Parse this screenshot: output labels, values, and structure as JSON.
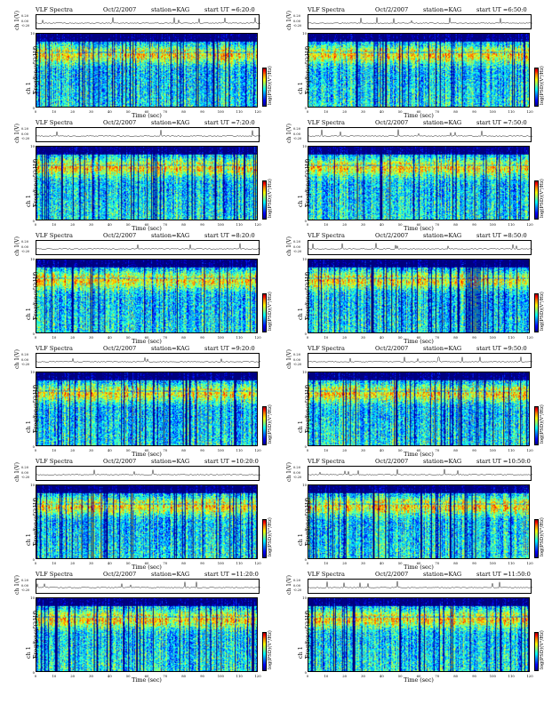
{
  "common": {
    "title_label": "VLF Spectra",
    "date": "Oct/2/2007",
    "station": "station=KAG",
    "strip_ylabel": "ch 1(V)",
    "strip_ticks": [
      "0.20",
      "0.00",
      "-0.20"
    ],
    "spec_ylabel": "Frequency  (kHz)",
    "spec_ch": "ch 1",
    "xlabel": "Time  (sec)",
    "cbar_label": "log(PSD)(V²/Hz)"
  },
  "chart_data": [
    {
      "type": "heatmap",
      "start_label": "start  UT  =6:20:0",
      "xlabel": "Time (sec)",
      "ylabel": "Frequency (kHz)",
      "xlim": [
        0,
        120
      ],
      "ylim": [
        0,
        10
      ],
      "x_ticks": [
        0,
        10,
        20,
        30,
        40,
        50,
        60,
        70,
        80,
        90,
        100,
        110,
        120
      ],
      "y_ticks": [
        0,
        2,
        4,
        6,
        8,
        10
      ]
    },
    {
      "type": "heatmap",
      "start_label": "start  UT  =6:50:0",
      "xlabel": "Time (sec)",
      "ylabel": "Frequency (kHz)",
      "xlim": [
        0,
        120
      ],
      "ylim": [
        0,
        10
      ],
      "x_ticks": [
        0,
        10,
        20,
        30,
        40,
        50,
        60,
        70,
        80,
        90,
        100,
        110,
        120
      ],
      "y_ticks": [
        0,
        2,
        4,
        6,
        8,
        10
      ]
    },
    {
      "type": "heatmap",
      "start_label": "start  UT  =7:20:0",
      "xlabel": "Time (sec)",
      "ylabel": "Frequency (kHz)",
      "xlim": [
        0,
        120
      ],
      "ylim": [
        0,
        10
      ],
      "x_ticks": [
        0,
        10,
        20,
        30,
        40,
        50,
        60,
        70,
        80,
        90,
        100,
        110,
        120
      ],
      "y_ticks": [
        0,
        2,
        4,
        6,
        8,
        10
      ]
    },
    {
      "type": "heatmap",
      "start_label": "start  UT  =7:50:0",
      "xlabel": "Time (sec)",
      "ylabel": "Frequency (kHz)",
      "xlim": [
        0,
        120
      ],
      "ylim": [
        0,
        10
      ],
      "x_ticks": [
        0,
        10,
        20,
        30,
        40,
        50,
        60,
        70,
        80,
        90,
        100,
        110,
        120
      ],
      "y_ticks": [
        0,
        2,
        4,
        6,
        8,
        10
      ]
    },
    {
      "type": "heatmap",
      "start_label": "start  UT  =8:20:0",
      "xlabel": "Time (sec)",
      "ylabel": "Frequency (kHz)",
      "xlim": [
        0,
        120
      ],
      "ylim": [
        0,
        10
      ],
      "x_ticks": [
        0,
        10,
        20,
        30,
        40,
        50,
        60,
        70,
        80,
        90,
        100,
        110,
        120
      ],
      "y_ticks": [
        0,
        2,
        4,
        6,
        8,
        10
      ]
    },
    {
      "type": "heatmap",
      "start_label": "start  UT  =8:50:0",
      "xlabel": "Time (sec)",
      "ylabel": "Frequency (kHz)",
      "xlim": [
        0,
        120
      ],
      "ylim": [
        0,
        10
      ],
      "x_ticks": [
        0,
        10,
        20,
        30,
        40,
        50,
        60,
        70,
        80,
        90,
        100,
        110,
        120
      ],
      "y_ticks": [
        0,
        2,
        4,
        6,
        8,
        10
      ]
    },
    {
      "type": "heatmap",
      "start_label": "start  UT  =9:20:0",
      "xlabel": "Time (sec)",
      "ylabel": "Frequency (kHz)",
      "xlim": [
        0,
        120
      ],
      "ylim": [
        0,
        10
      ],
      "x_ticks": [
        0,
        10,
        20,
        30,
        40,
        50,
        60,
        70,
        80,
        90,
        100,
        110,
        120
      ],
      "y_ticks": [
        0,
        2,
        4,
        6,
        8,
        10
      ]
    },
    {
      "type": "heatmap",
      "start_label": "start  UT  =9:50:0",
      "xlabel": "Time (sec)",
      "ylabel": "Frequency (kHz)",
      "xlim": [
        0,
        120
      ],
      "ylim": [
        0,
        10
      ],
      "x_ticks": [
        0,
        10,
        20,
        30,
        40,
        50,
        60,
        70,
        80,
        90,
        100,
        110,
        120
      ],
      "y_ticks": [
        0,
        2,
        4,
        6,
        8,
        10
      ]
    },
    {
      "type": "heatmap",
      "start_label": "start  UT  =10:20:0",
      "xlabel": "Time (sec)",
      "ylabel": "Frequency (kHz)",
      "xlim": [
        0,
        120
      ],
      "ylim": [
        0,
        10
      ],
      "x_ticks": [
        0,
        10,
        20,
        30,
        40,
        50,
        60,
        70,
        80,
        90,
        100,
        110,
        120
      ],
      "y_ticks": [
        0,
        2,
        4,
        6,
        8,
        10
      ]
    },
    {
      "type": "heatmap",
      "start_label": "start  UT  =10:50:0",
      "xlabel": "Time (sec)",
      "ylabel": "Frequency (kHz)",
      "xlim": [
        0,
        120
      ],
      "ylim": [
        0,
        10
      ],
      "x_ticks": [
        0,
        10,
        20,
        30,
        40,
        50,
        60,
        70,
        80,
        90,
        100,
        110,
        120
      ],
      "y_ticks": [
        0,
        2,
        4,
        6,
        8,
        10
      ]
    },
    {
      "type": "heatmap",
      "start_label": "start  UT  =11:20:0",
      "xlabel": "Time (sec)",
      "ylabel": "Frequency (kHz)",
      "xlim": [
        0,
        120
      ],
      "ylim": [
        0,
        10
      ],
      "x_ticks": [
        0,
        10,
        20,
        30,
        40,
        50,
        60,
        70,
        80,
        90,
        100,
        110,
        120
      ],
      "y_ticks": [
        0,
        2,
        4,
        6,
        8,
        10
      ]
    },
    {
      "type": "heatmap",
      "start_label": "start  UT  =11:50:0",
      "xlabel": "Time (sec)",
      "ylabel": "Frequency (kHz)",
      "xlim": [
        0,
        120
      ],
      "ylim": [
        0,
        10
      ],
      "x_ticks": [
        0,
        10,
        20,
        30,
        40,
        50,
        60,
        70,
        80,
        90,
        100,
        110,
        120
      ],
      "y_ticks": [
        0,
        2,
        4,
        6,
        8,
        10
      ]
    }
  ]
}
